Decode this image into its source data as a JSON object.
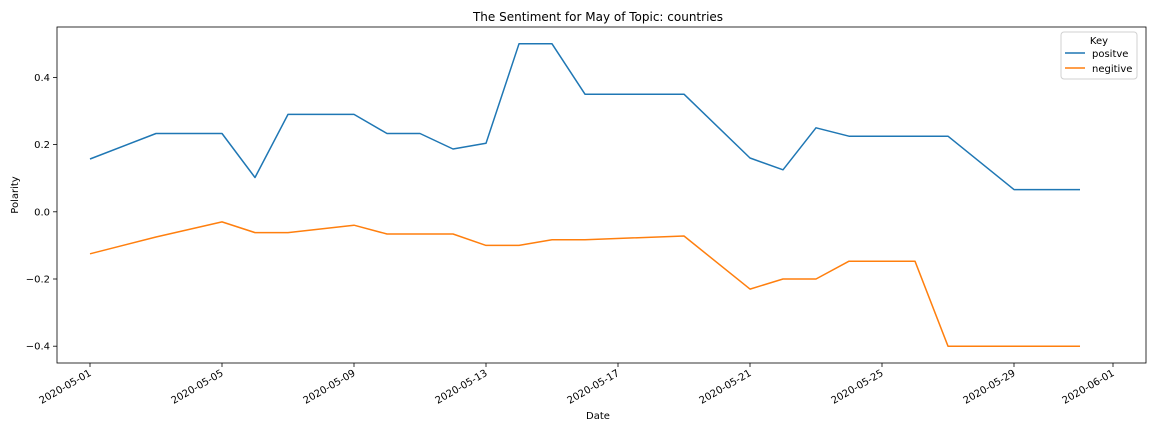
{
  "chart_data": {
    "type": "line",
    "title": "The Sentiment for May of Topic: countries",
    "xlabel": "Date",
    "ylabel": "Polarity",
    "x_axis_type": "date",
    "xlim": [
      "2020-04-30",
      "2020-06-02"
    ],
    "ylim": [
      -0.45,
      0.55
    ],
    "x_ticks": [
      "2020-05-01",
      "2020-05-05",
      "2020-05-09",
      "2020-05-13",
      "2020-05-17",
      "2020-05-21",
      "2020-05-25",
      "2020-05-29",
      "2020-06-01"
    ],
    "y_ticks": [
      -0.4,
      -0.2,
      0.0,
      0.2,
      0.4
    ],
    "y_tick_labels": [
      "−0.4",
      "−0.2",
      "0.0",
      "0.2",
      "0.4"
    ],
    "grid": false,
    "legend": {
      "title": "Key",
      "position": "top-right"
    },
    "x": [
      "2020-05-01",
      "2020-05-03",
      "2020-05-05",
      "2020-05-06",
      "2020-05-07",
      "2020-05-09",
      "2020-05-10",
      "2020-05-11",
      "2020-05-12",
      "2020-05-13",
      "2020-05-14",
      "2020-05-15",
      "2020-05-16",
      "2020-05-19",
      "2020-05-21",
      "2020-05-22",
      "2020-05-23",
      "2020-05-24",
      "2020-05-26",
      "2020-05-27",
      "2020-05-29",
      "2020-05-31"
    ],
    "series": [
      {
        "name": "positve",
        "color": "#1f77b4",
        "values": [
          0.157,
          0.233,
          0.233,
          0.102,
          0.29,
          0.29,
          0.233,
          0.233,
          0.187,
          0.204,
          0.5,
          0.5,
          0.35,
          0.35,
          0.16,
          0.125,
          0.25,
          0.225,
          0.225,
          0.225,
          0.066,
          0.066
        ]
      },
      {
        "name": "negitive",
        "color": "#ff7f0e",
        "values": [
          -0.125,
          -0.075,
          -0.03,
          -0.062,
          -0.062,
          -0.04,
          -0.066,
          -0.066,
          -0.066,
          -0.1,
          -0.1,
          -0.083,
          -0.083,
          -0.072,
          -0.23,
          -0.2,
          -0.2,
          -0.147,
          -0.147,
          -0.4,
          -0.4,
          -0.4
        ]
      }
    ]
  }
}
